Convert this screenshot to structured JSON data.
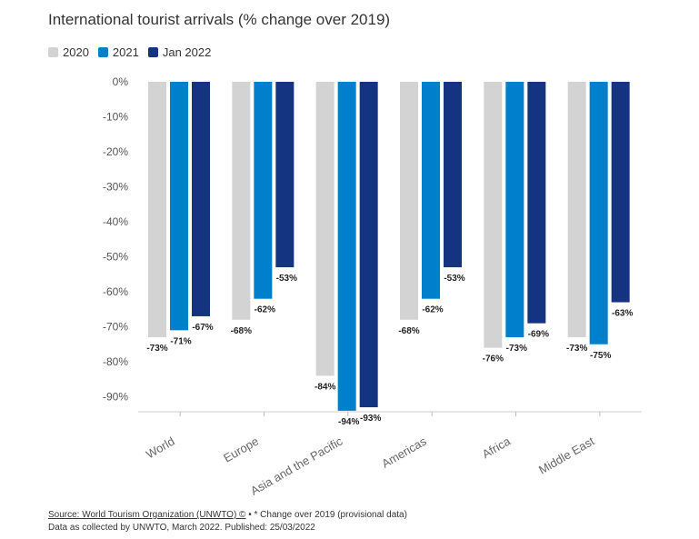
{
  "title": "International tourist arrivals (% change over 2019)",
  "colors": {
    "2020": "#d3d3d3",
    "2021": "#0080cc",
    "Jan 2022": "#143380"
  },
  "chart_data": {
    "type": "bar",
    "title": "International tourist arrivals (% change over 2019)",
    "categories": [
      "World",
      "Europe",
      "Asia and the Pacific",
      "Americas",
      "Africa",
      "Middle East"
    ],
    "series": [
      {
        "name": "2020",
        "values": [
          -73,
          -68,
          -84,
          -68,
          -76,
          -73
        ],
        "labels": [
          "-73%",
          "-68%",
          "-84%",
          "-68%",
          "-76%",
          "-73%"
        ]
      },
      {
        "name": "2021",
        "values": [
          -71,
          -62,
          -94,
          -62,
          -73,
          -75
        ],
        "labels": [
          "-71%",
          "-62%",
          "-94%",
          "-62%",
          "-73%",
          "-75%"
        ]
      },
      {
        "name": "Jan 2022",
        "values": [
          -67,
          -53,
          -93,
          -53,
          -69,
          -63
        ],
        "labels": [
          "-67%",
          "-53%",
          "-93%",
          "-53%",
          "-69%",
          "-63%"
        ]
      }
    ],
    "yticks": [
      "0%",
      "-10%",
      "-20%",
      "-30%",
      "-40%",
      "-50%",
      "-60%",
      "-70%",
      "-80%",
      "-90%"
    ],
    "ylim": [
      -95,
      0
    ],
    "legend": "top-left",
    "grid": false,
    "xlabel": "",
    "ylabel": ""
  },
  "footer": {
    "source_link": "Source: World Tourism Organization (UNWTO) ©",
    "source_note": " • * Change over 2019 (provisional data)",
    "collected": "Data as collected by UNWTO, March 2022. Published: 25/03/2022"
  }
}
